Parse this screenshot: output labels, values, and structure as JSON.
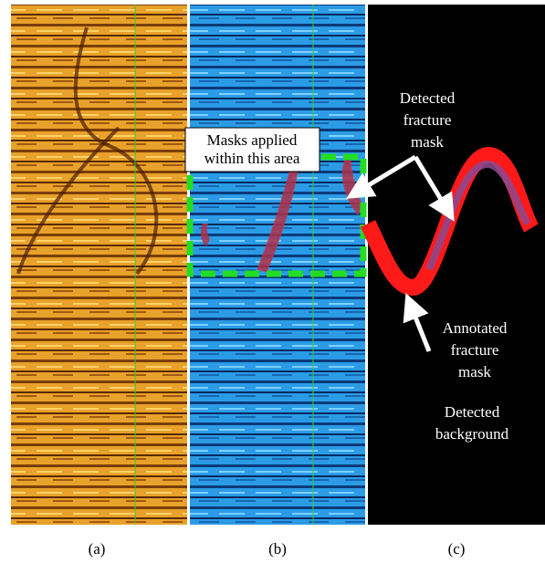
{
  "captions": [
    "(a)",
    "(b)",
    "(c)"
  ],
  "annotations": {
    "masks_area": [
      "Masks applied",
      "within this area"
    ],
    "detected_mask": [
      "Detected",
      "fracture",
      "mask"
    ],
    "annotated_mask": [
      "Annotated",
      "fracture",
      "mask"
    ],
    "detected_background": [
      "Detected",
      "background"
    ]
  }
}
